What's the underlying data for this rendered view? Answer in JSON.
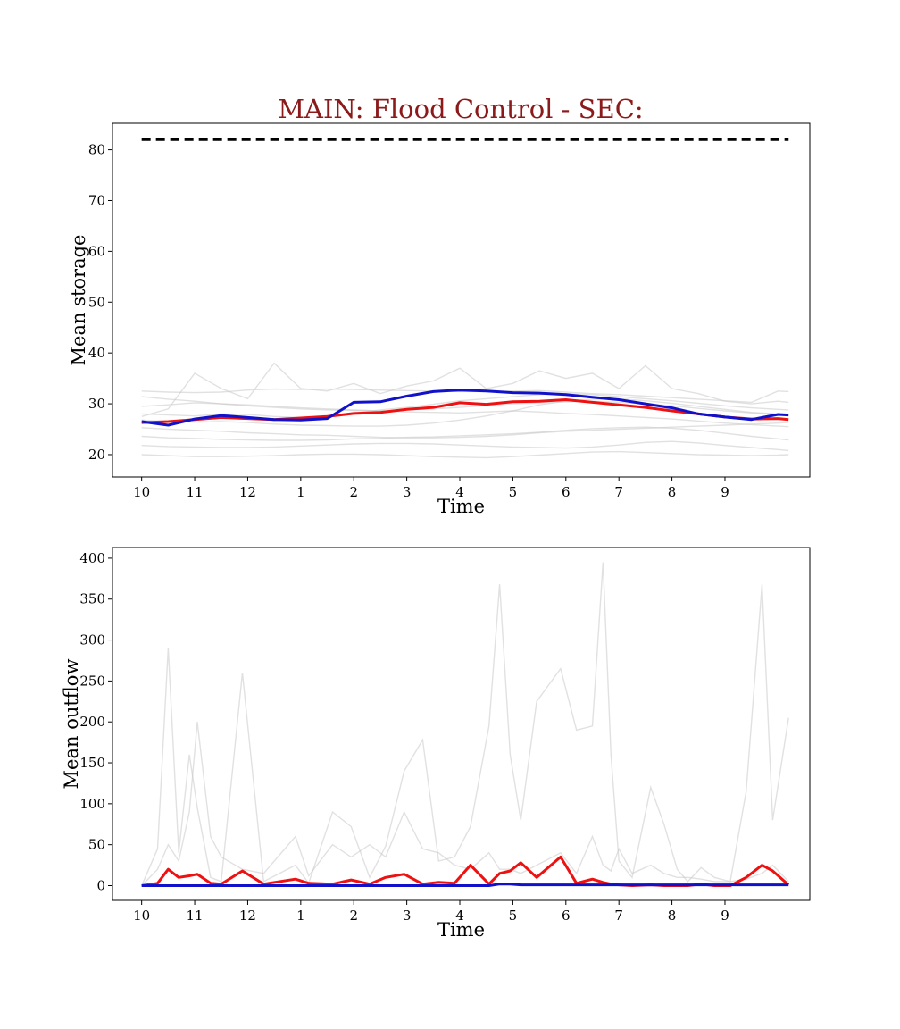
{
  "title": "MAIN: Flood Control - SEC:",
  "colors": {
    "title": "#8b1a1a",
    "observed": "#ee1111",
    "simulated": "#1111cc",
    "ensemble": "#c8c8c8",
    "capacity": "#000000"
  },
  "chart_data": [
    {
      "type": "line",
      "xlabel": "Time",
      "ylabel": "Mean storage",
      "x_tick_labels": [
        "10",
        "11",
        "12",
        "1",
        "2",
        "3",
        "4",
        "5",
        "6",
        "7",
        "8",
        "9"
      ],
      "y_ticks": [
        20,
        30,
        40,
        50,
        60,
        70,
        80
      ],
      "xlim": [
        -0.55,
        12.6
      ],
      "ylim": [
        15.6,
        85.2
      ],
      "grid": false,
      "capacity": 82,
      "x": [
        0,
        0.5,
        1,
        1.5,
        2,
        2.5,
        3,
        3.5,
        4,
        4.5,
        5,
        5.5,
        6,
        6.5,
        7,
        7.5,
        8,
        8.5,
        9,
        9.5,
        10,
        10.5,
        11,
        11.5,
        12,
        12.2
      ],
      "red": [
        26.3,
        26.5,
        26.9,
        27.3,
        27.1,
        26.9,
        27.2,
        27.5,
        28.1,
        28.3,
        28.9,
        29.3,
        30.2,
        29.9,
        30.4,
        30.5,
        30.8,
        30.3,
        29.8,
        29.3,
        28.6,
        28.0,
        27.4,
        27.0,
        27.1,
        26.9
      ],
      "blue": [
        26.5,
        25.8,
        27.0,
        27.7,
        27.3,
        26.9,
        26.8,
        27.1,
        30.3,
        30.4,
        31.5,
        32.4,
        32.7,
        32.5,
        32.2,
        32.1,
        31.8,
        31.3,
        30.8,
        30.0,
        29.2,
        28.0,
        27.4,
        26.9,
        27.9,
        27.8
      ],
      "ensemble": [
        [
          32.5,
          32.3,
          32.2,
          32.3,
          32.7,
          32.9,
          32.8,
          32.9,
          32.8,
          32.7,
          32.6,
          32.5,
          32.4,
          32.4,
          32.5,
          32.6,
          32.3,
          32.0,
          31.8,
          31.5,
          31.2,
          30.9,
          30.6,
          30.3,
          32.5,
          32.4
        ],
        [
          31.4,
          30.9,
          30.5,
          30.0,
          29.8,
          29.5,
          29.2,
          29.0,
          28.8,
          28.6,
          28.4,
          28.3,
          28.2,
          28.4,
          28.6,
          28.4,
          28.1,
          27.9,
          27.6,
          27.3,
          27.0,
          26.6,
          26.2,
          25.9,
          25.6,
          25.5
        ],
        [
          28.0,
          27.8,
          27.6,
          28.0,
          27.9,
          27.5,
          27.3,
          27.6,
          28.2,
          28.8,
          29.3,
          29.9,
          30.6,
          31.0,
          31.4,
          31.8,
          32.0,
          31.8,
          31.4,
          31.0,
          30.6,
          30.1,
          29.6,
          29.2,
          28.9,
          28.8
        ],
        [
          26.8,
          26.5,
          26.4,
          26.5,
          26.3,
          26.0,
          25.8,
          25.7,
          25.6,
          25.6,
          25.8,
          26.2,
          26.8,
          27.6,
          28.6,
          29.8,
          30.5,
          30.9,
          31.0,
          30.6,
          30.1,
          29.5,
          28.9,
          28.3,
          28.0,
          27.8
        ],
        [
          25.3,
          25.0,
          24.8,
          24.6,
          24.3,
          24.1,
          23.9,
          23.8,
          23.6,
          23.4,
          23.3,
          23.3,
          23.4,
          23.6,
          23.9,
          24.3,
          24.6,
          24.8,
          25.0,
          25.2,
          25.4,
          25.6,
          25.8,
          26.0,
          26.2,
          26.3
        ],
        [
          23.6,
          23.3,
          23.2,
          23.0,
          22.9,
          22.8,
          22.8,
          22.9,
          23.1,
          23.2,
          23.4,
          23.5,
          23.7,
          23.9,
          24.1,
          24.4,
          24.8,
          25.1,
          25.3,
          25.4,
          25.2,
          24.8,
          24.2,
          23.6,
          23.1,
          22.9
        ],
        [
          21.8,
          21.6,
          21.5,
          21.4,
          21.4,
          21.5,
          21.7,
          21.9,
          22.1,
          22.2,
          22.2,
          22.1,
          21.9,
          21.7,
          21.5,
          21.4,
          21.3,
          21.5,
          21.9,
          22.4,
          22.6,
          22.3,
          21.8,
          21.4,
          21.0,
          20.8
        ],
        [
          20.0,
          19.8,
          19.6,
          19.6,
          19.7,
          19.8,
          20.0,
          20.1,
          20.1,
          20.0,
          19.8,
          19.6,
          19.5,
          19.4,
          19.6,
          19.9,
          20.2,
          20.5,
          20.6,
          20.4,
          20.2,
          20.0,
          19.9,
          19.8,
          19.9,
          20.0
        ],
        [
          27.5,
          29.0,
          36.0,
          33.0,
          31.0,
          38.0,
          33.0,
          32.5,
          34.0,
          32.0,
          33.5,
          34.5,
          37.0,
          33.0,
          34.0,
          36.5,
          35.0,
          36.0,
          33.0,
          37.5,
          33.0,
          32.0,
          30.5,
          30.0,
          30.5,
          30.3
        ],
        [
          29.5,
          29.8,
          30.2,
          30.0,
          29.6,
          29.3,
          29.0,
          28.8,
          28.7,
          28.6,
          28.8,
          29.0,
          29.3,
          29.7,
          30.0,
          30.2,
          30.4,
          30.5,
          30.3,
          30.0,
          29.6,
          29.1,
          28.6,
          28.2,
          27.9,
          27.7
        ]
      ]
    },
    {
      "type": "line",
      "xlabel": "Time",
      "ylabel": "Mean outflow",
      "x_tick_labels": [
        "10",
        "11",
        "12",
        "1",
        "2",
        "3",
        "4",
        "5",
        "6",
        "7",
        "8",
        "9"
      ],
      "y_ticks": [
        0,
        50,
        100,
        150,
        200,
        250,
        300,
        350,
        400
      ],
      "xlim": [
        -0.55,
        12.6
      ],
      "ylim": [
        -18,
        413
      ],
      "grid": false,
      "x": [
        0,
        0.3,
        0.5,
        0.7,
        0.9,
        1.05,
        1.3,
        1.5,
        1.9,
        2.3,
        2.9,
        3.15,
        3.6,
        3.95,
        4.3,
        4.6,
        4.95,
        5.3,
        5.6,
        5.9,
        6.2,
        6.55,
        6.75,
        6.95,
        7.15,
        7.45,
        7.9,
        8.2,
        8.5,
        8.7,
        8.85,
        9.0,
        9.25,
        9.6,
        9.85,
        10.1,
        10.3,
        10.55,
        10.8,
        11.1,
        11.4,
        11.7,
        11.9,
        12.2
      ],
      "red": [
        0,
        3,
        20,
        10,
        12,
        14,
        3,
        2,
        18,
        2,
        8,
        3,
        2,
        7,
        2,
        10,
        14,
        2,
        4,
        3,
        25,
        2,
        15,
        18,
        28,
        10,
        35,
        3,
        8,
        4,
        2,
        1,
        0,
        1,
        0,
        0,
        0,
        2,
        0,
        0,
        10,
        25,
        18,
        1
      ],
      "blue": [
        0,
        0,
        0,
        0,
        0,
        0,
        0,
        0,
        0,
        0,
        0,
        0,
        0,
        0,
        0,
        0,
        0,
        0,
        0,
        0,
        0,
        0,
        2,
        2,
        1,
        1,
        1,
        1,
        1,
        1,
        1,
        1,
        1,
        1,
        1,
        1,
        1,
        1,
        1,
        1,
        1,
        1,
        1,
        1
      ],
      "ensemble": [
        [
          0,
          45,
          290,
          40,
          160,
          95,
          10,
          5,
          260,
          5,
          25,
          3,
          90,
          72,
          10,
          48,
          140,
          178,
          30,
          35,
          72,
          195,
          368,
          160,
          80,
          225,
          265,
          190,
          195,
          395,
          160,
          30,
          10,
          120,
          75,
          20,
          5,
          22,
          10,
          5,
          115,
          368,
          80,
          205
        ],
        [
          0,
          20,
          50,
          30,
          90,
          200,
          60,
          35,
          20,
          15,
          60,
          12,
          50,
          35,
          50,
          35,
          90,
          45,
          40,
          25,
          20,
          40,
          20,
          20,
          15,
          25,
          40,
          15,
          60,
          25,
          18,
          45,
          15,
          25,
          15,
          10,
          10,
          8,
          5,
          5,
          8,
          15,
          25,
          5
        ]
      ]
    }
  ]
}
